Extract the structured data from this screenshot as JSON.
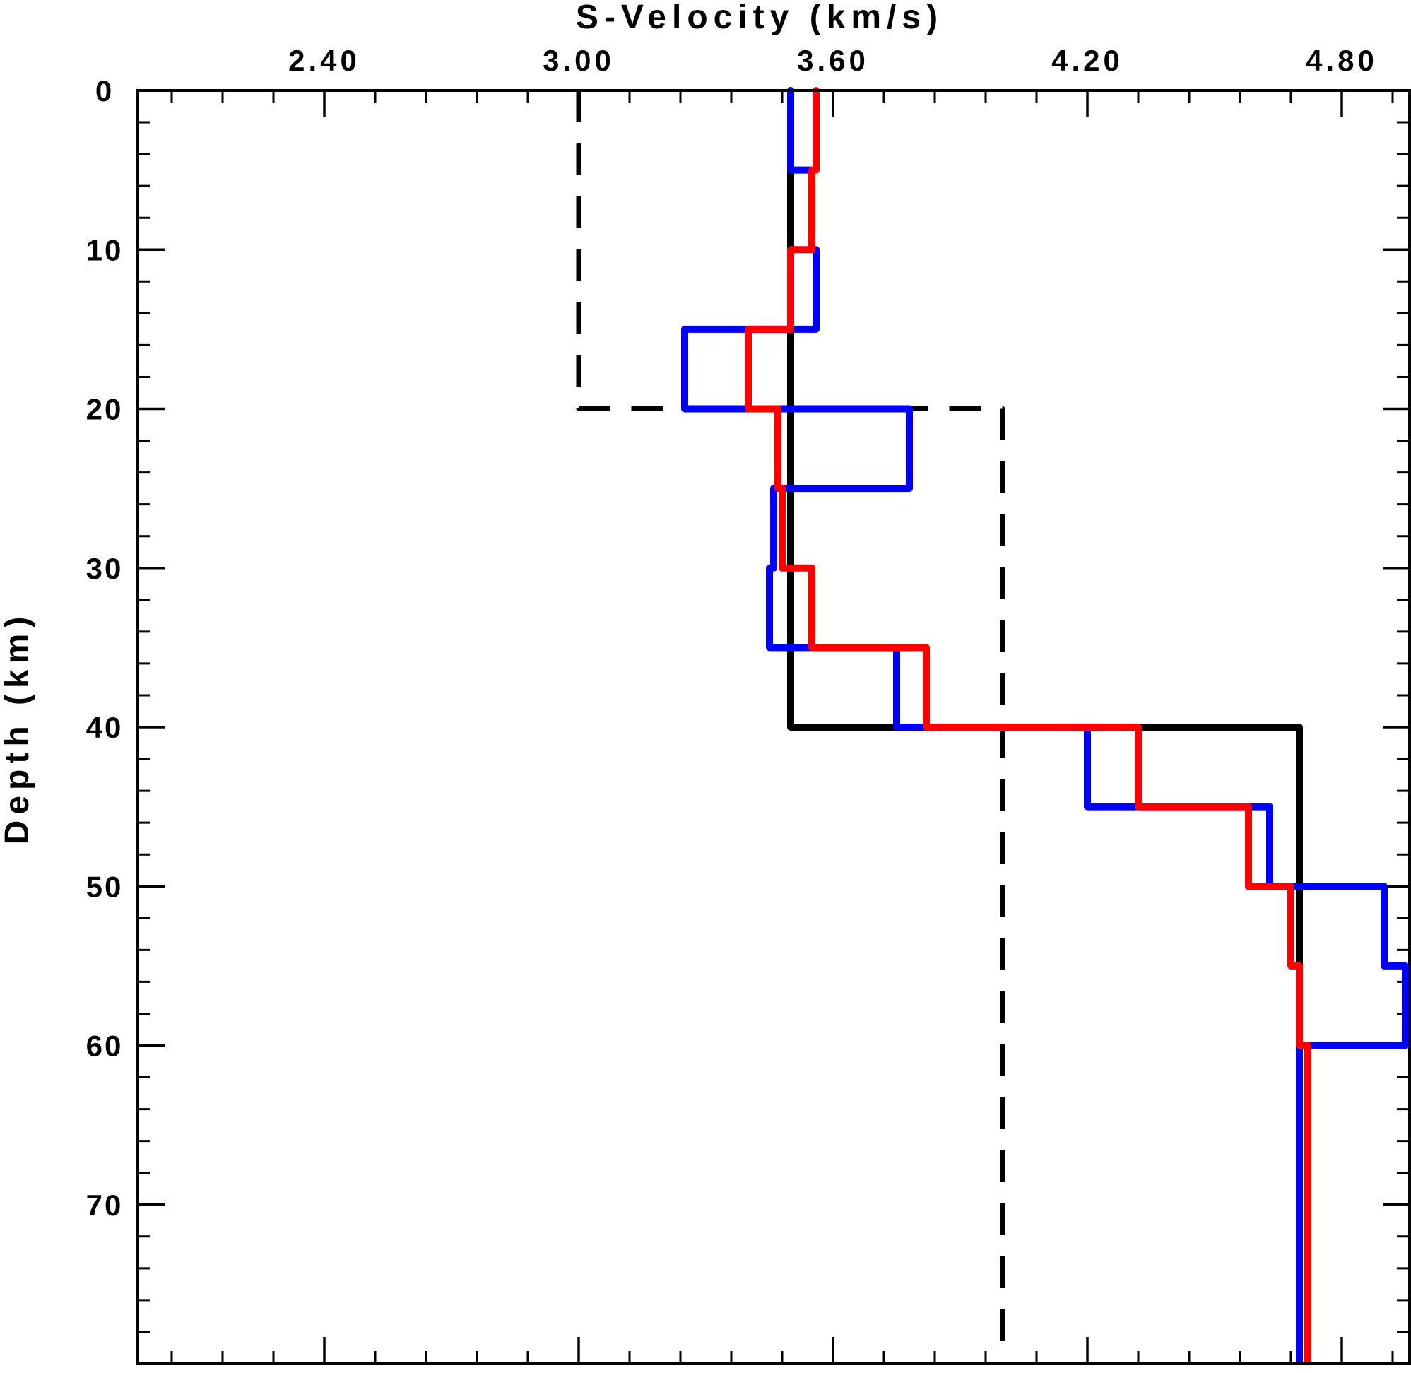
{
  "chart_data": {
    "type": "line",
    "title": "",
    "xlabel": "S-Velocity (km/s)",
    "ylabel": "Depth (km)",
    "xlim": [
      1.96,
      4.96
    ],
    "ylim": [
      0,
      80
    ],
    "y_inverted": true,
    "x_axis_position": "top",
    "x_ticks": [
      2.4,
      3.0,
      3.6,
      4.2,
      4.8
    ],
    "x_tick_labels": [
      "2.40",
      "3.00",
      "3.60",
      "4.20",
      "4.80"
    ],
    "y_ticks": [
      0,
      10,
      20,
      30,
      40,
      50,
      60,
      70
    ],
    "y_tick_labels": [
      "0",
      "10",
      "20",
      "30",
      "40",
      "50",
      "60",
      "70"
    ],
    "grid": false,
    "series": [
      {
        "color": "#000000",
        "dash": "dashed",
        "points": [
          [
            3.0,
            0
          ],
          [
            3.0,
            20
          ],
          [
            4.0,
            20
          ],
          [
            4.0,
            80
          ]
        ]
      },
      {
        "color": "#000000",
        "dash": "solid",
        "points": [
          [
            3.5,
            0
          ],
          [
            3.5,
            40
          ],
          [
            4.7,
            40
          ],
          [
            4.7,
            80
          ]
        ]
      },
      {
        "color": "#0000ff",
        "dash": "solid",
        "points": [
          [
            3.5,
            0
          ],
          [
            3.5,
            5
          ],
          [
            3.55,
            5
          ],
          [
            3.55,
            10
          ],
          [
            3.56,
            10
          ],
          [
            3.56,
            15
          ],
          [
            3.25,
            15
          ],
          [
            3.25,
            20
          ],
          [
            3.78,
            20
          ],
          [
            3.78,
            25
          ],
          [
            3.46,
            25
          ],
          [
            3.46,
            30
          ],
          [
            3.45,
            30
          ],
          [
            3.45,
            35
          ],
          [
            3.75,
            35
          ],
          [
            3.75,
            40
          ],
          [
            4.2,
            40
          ],
          [
            4.2,
            45
          ],
          [
            4.63,
            45
          ],
          [
            4.63,
            50
          ],
          [
            4.9,
            50
          ],
          [
            4.9,
            55
          ],
          [
            4.95,
            55
          ],
          [
            4.95,
            60
          ],
          [
            4.7,
            60
          ],
          [
            4.7,
            80
          ]
        ]
      },
      {
        "color": "#ff0000",
        "dash": "solid",
        "points": [
          [
            3.56,
            0
          ],
          [
            3.56,
            5
          ],
          [
            3.55,
            5
          ],
          [
            3.55,
            10
          ],
          [
            3.5,
            10
          ],
          [
            3.5,
            15
          ],
          [
            3.4,
            15
          ],
          [
            3.4,
            20
          ],
          [
            3.47,
            20
          ],
          [
            3.47,
            25
          ],
          [
            3.48,
            25
          ],
          [
            3.48,
            30
          ],
          [
            3.55,
            30
          ],
          [
            3.55,
            35
          ],
          [
            3.82,
            35
          ],
          [
            3.82,
            40
          ],
          [
            4.32,
            40
          ],
          [
            4.32,
            45
          ],
          [
            4.58,
            45
          ],
          [
            4.58,
            50
          ],
          [
            4.68,
            50
          ],
          [
            4.68,
            55
          ],
          [
            4.7,
            55
          ],
          [
            4.7,
            60
          ],
          [
            4.72,
            60
          ],
          [
            4.72,
            80
          ]
        ]
      }
    ]
  }
}
